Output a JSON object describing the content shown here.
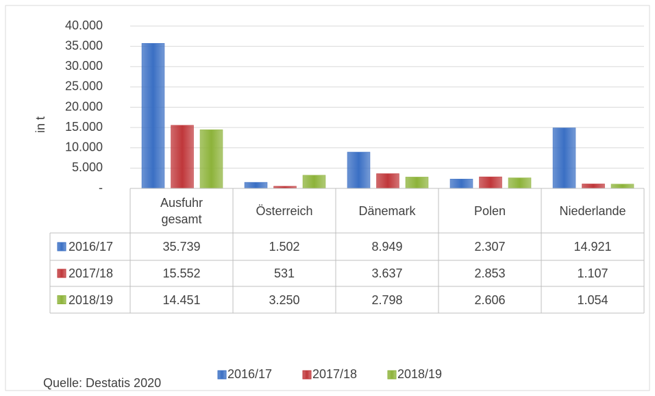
{
  "chart_data": {
    "type": "bar",
    "y_axis_label": "in t",
    "categories": [
      "Ausfuhr gesamt",
      "Österreich",
      "Dänemark",
      "Polen",
      "Niederlande"
    ],
    "series": [
      {
        "name": "2016/17",
        "color": "#3a6fc4",
        "values": [
          35739,
          1502,
          8949,
          2307,
          14921
        ],
        "value_labels": [
          "35.739",
          "1.502",
          "8.949",
          "2.307",
          "14.921"
        ]
      },
      {
        "name": "2017/18",
        "color": "#c0373a",
        "values": [
          15552,
          531,
          3637,
          2853,
          1107
        ],
        "value_labels": [
          "15.552",
          "531",
          "3.637",
          "2.853",
          "1.107"
        ]
      },
      {
        "name": "2018/19",
        "color": "#8db33a",
        "values": [
          14451,
          3250,
          2798,
          2606,
          1054
        ],
        "value_labels": [
          "14.451",
          "3.250",
          "2.798",
          "2.606",
          "1.054"
        ]
      }
    ],
    "ylim": [
      0,
      40000
    ],
    "yticks": [
      {
        "value": 0,
        "label": "-"
      },
      {
        "value": 5000,
        "label": "5.000"
      },
      {
        "value": 10000,
        "label": "10.000"
      },
      {
        "value": 15000,
        "label": "15.000"
      },
      {
        "value": 20000,
        "label": "20.000"
      },
      {
        "value": 25000,
        "label": "25.000"
      },
      {
        "value": 30000,
        "label": "30.000"
      },
      {
        "value": 35000,
        "label": "35.000"
      },
      {
        "value": 40000,
        "label": "40.000"
      }
    ],
    "grid": true,
    "legend": "bottom",
    "source": "Quelle: Destatis 2020"
  }
}
